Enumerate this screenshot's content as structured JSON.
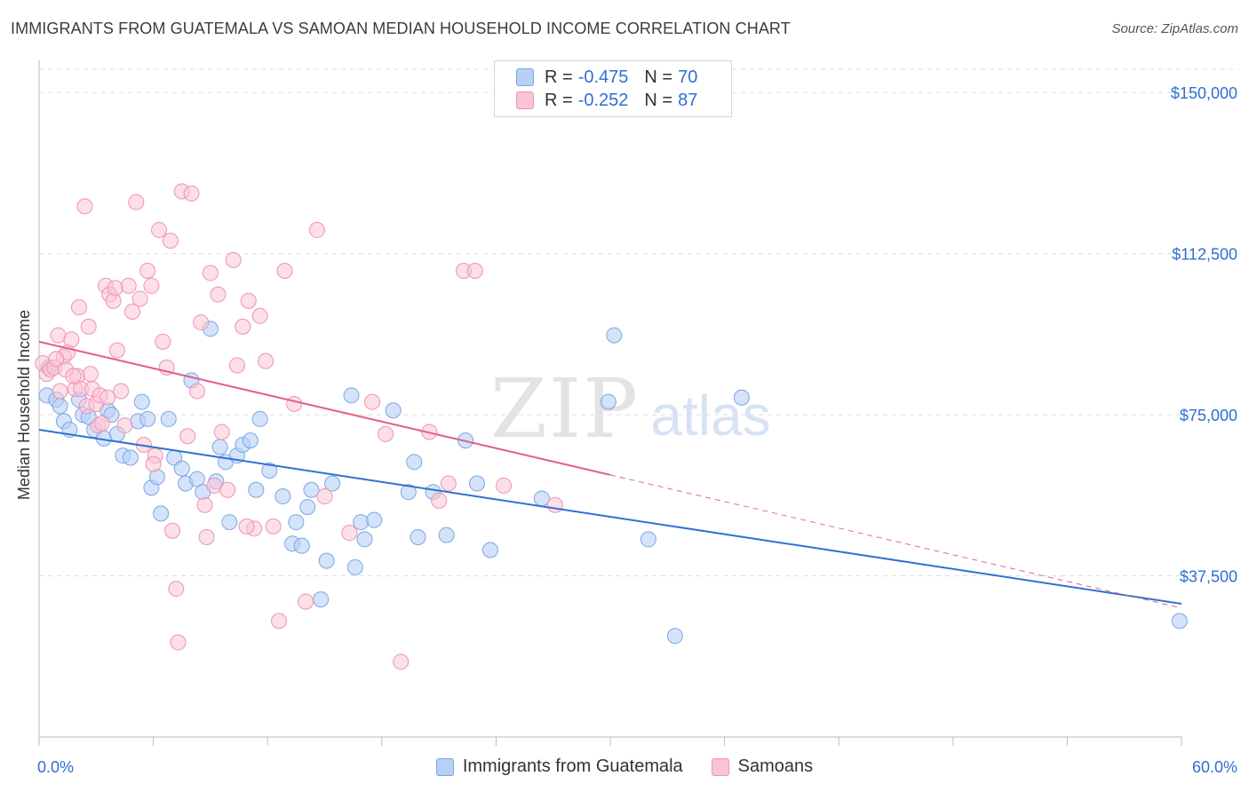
{
  "header": {
    "title": "IMMIGRANTS FROM GUATEMALA VS SAMOAN MEDIAN HOUSEHOLD INCOME CORRELATION CHART",
    "source": "Source: ZipAtlas.com"
  },
  "legend_top": {
    "rows": [
      {
        "r_label": "R =",
        "r_value": "-0.475",
        "n_label": "N =",
        "n_value": "70"
      },
      {
        "r_label": "R =",
        "r_value": "-0.252",
        "n_label": "N =",
        "n_value": "87"
      }
    ]
  },
  "legend_bottom": {
    "items": [
      "Immigrants from Guatemala",
      "Samoans"
    ]
  },
  "colors": {
    "guatemala_fill": "#b8d0f5",
    "guatemala_stroke": "#7aa6e6",
    "guatemala_line": "#2f72d0",
    "samoan_fill": "#f9c4d6",
    "samoan_stroke": "#ee93b2",
    "samoan_line": "#e0628d",
    "axis_label": "#2f6fd0",
    "grid": "#dddddd"
  },
  "watermark": {
    "zip": "ZIP",
    "atlas": "atlas"
  },
  "chart_data": {
    "type": "scatter",
    "xlabel": "",
    "ylabel": "Median Household Income",
    "xlim": [
      0,
      60
    ],
    "ylim": [
      0,
      155000
    ],
    "x_tick_labels": [
      "0.0%",
      "60.0%"
    ],
    "y_ticks": [
      37500,
      75000,
      112500,
      150000
    ],
    "y_tick_labels": [
      "$37,500",
      "$75,000",
      "$112,500",
      "$150,000"
    ],
    "grid": "horizontal dashed",
    "legend_placement": "top-center",
    "series": [
      {
        "name": "Immigrants from Guatemala",
        "trend": {
          "x0": 0,
          "y0": 71500,
          "x1": 60,
          "y1": 31000
        },
        "points": [
          [
            0.4,
            79500
          ],
          [
            0.5,
            86000
          ],
          [
            0.9,
            78500
          ],
          [
            1.1,
            77000
          ],
          [
            1.3,
            73500
          ],
          [
            1.6,
            71500
          ],
          [
            2.1,
            78500
          ],
          [
            2.3,
            75000
          ],
          [
            2.6,
            74500
          ],
          [
            2.9,
            71500
          ],
          [
            3.4,
            69500
          ],
          [
            3.6,
            76000
          ],
          [
            3.8,
            75000
          ],
          [
            4.1,
            70500
          ],
          [
            4.4,
            65500
          ],
          [
            4.8,
            65000
          ],
          [
            5.2,
            73500
          ],
          [
            5.4,
            78000
          ],
          [
            5.7,
            74000
          ],
          [
            5.9,
            58000
          ],
          [
            6.2,
            60500
          ],
          [
            6.4,
            52000
          ],
          [
            6.8,
            74000
          ],
          [
            7.1,
            65000
          ],
          [
            7.5,
            62500
          ],
          [
            7.7,
            59000
          ],
          [
            8.0,
            83000
          ],
          [
            8.3,
            60000
          ],
          [
            8.6,
            57000
          ],
          [
            9.0,
            95000
          ],
          [
            9.3,
            59500
          ],
          [
            9.5,
            67500
          ],
          [
            9.8,
            64000
          ],
          [
            10.0,
            50000
          ],
          [
            10.4,
            65500
          ],
          [
            10.7,
            68000
          ],
          [
            11.1,
            69000
          ],
          [
            11.4,
            57500
          ],
          [
            11.6,
            74000
          ],
          [
            12.1,
            62000
          ],
          [
            12.8,
            56000
          ],
          [
            13.3,
            45000
          ],
          [
            13.5,
            50000
          ],
          [
            13.8,
            44500
          ],
          [
            14.1,
            53500
          ],
          [
            14.3,
            57500
          ],
          [
            14.8,
            32000
          ],
          [
            15.1,
            41000
          ],
          [
            15.4,
            59000
          ],
          [
            16.4,
            79500
          ],
          [
            16.6,
            39500
          ],
          [
            16.9,
            50000
          ],
          [
            17.1,
            46000
          ],
          [
            17.6,
            50500
          ],
          [
            18.6,
            76000
          ],
          [
            19.4,
            57000
          ],
          [
            19.7,
            64000
          ],
          [
            19.9,
            46500
          ],
          [
            20.7,
            57000
          ],
          [
            21.4,
            47000
          ],
          [
            22.4,
            69000
          ],
          [
            23.0,
            59000
          ],
          [
            23.7,
            43500
          ],
          [
            26.4,
            55500
          ],
          [
            29.9,
            78000
          ],
          [
            30.2,
            93500
          ],
          [
            32.0,
            46000
          ],
          [
            33.4,
            23500
          ],
          [
            36.9,
            79000
          ],
          [
            59.9,
            27000
          ]
        ]
      },
      {
        "name": "Samoans",
        "trend": {
          "x0": 0,
          "y0": 92000,
          "x1": 30,
          "y1": 61000
        },
        "trend_dashed": {
          "x0": 30,
          "y0": 61000,
          "x1": 60,
          "y1": 30000
        },
        "points": [
          [
            0.2,
            87000
          ],
          [
            0.4,
            84500
          ],
          [
            0.6,
            85500
          ],
          [
            0.8,
            86000
          ],
          [
            1.0,
            93500
          ],
          [
            1.1,
            80500
          ],
          [
            1.3,
            88500
          ],
          [
            1.5,
            89500
          ],
          [
            1.7,
            92500
          ],
          [
            1.9,
            81000
          ],
          [
            2.0,
            84000
          ],
          [
            2.1,
            100000
          ],
          [
            2.2,
            81000
          ],
          [
            2.4,
            123500
          ],
          [
            2.5,
            77000
          ],
          [
            2.6,
            95500
          ],
          [
            2.8,
            81000
          ],
          [
            3.0,
            77500
          ],
          [
            3.1,
            72500
          ],
          [
            3.3,
            73000
          ],
          [
            3.5,
            105000
          ],
          [
            3.7,
            103000
          ],
          [
            3.9,
            101500
          ],
          [
            4.1,
            90000
          ],
          [
            4.3,
            80500
          ],
          [
            4.5,
            72500
          ],
          [
            4.7,
            105000
          ],
          [
            4.9,
            99000
          ],
          [
            5.1,
            124500
          ],
          [
            5.3,
            102000
          ],
          [
            5.5,
            68000
          ],
          [
            5.7,
            108500
          ],
          [
            5.9,
            105000
          ],
          [
            6.1,
            65500
          ],
          [
            6.3,
            118000
          ],
          [
            6.5,
            92000
          ],
          [
            6.7,
            86000
          ],
          [
            6.9,
            115500
          ],
          [
            7.2,
            34500
          ],
          [
            7.5,
            127000
          ],
          [
            7.8,
            70000
          ],
          [
            8.0,
            126500
          ],
          [
            8.3,
            80500
          ],
          [
            8.5,
            96500
          ],
          [
            8.7,
            54000
          ],
          [
            9.0,
            108000
          ],
          [
            9.2,
            58500
          ],
          [
            9.4,
            103000
          ],
          [
            9.6,
            71000
          ],
          [
            9.9,
            57500
          ],
          [
            10.2,
            111000
          ],
          [
            10.4,
            86500
          ],
          [
            10.7,
            95500
          ],
          [
            11.0,
            101500
          ],
          [
            11.3,
            48500
          ],
          [
            11.6,
            98000
          ],
          [
            11.9,
            87500
          ],
          [
            12.3,
            49000
          ],
          [
            12.6,
            27000
          ],
          [
            12.9,
            108500
          ],
          [
            13.4,
            77500
          ],
          [
            14.0,
            31500
          ],
          [
            14.6,
            118000
          ],
          [
            15.0,
            56000
          ],
          [
            16.3,
            47500
          ],
          [
            17.5,
            78000
          ],
          [
            18.2,
            70500
          ],
          [
            19.0,
            17500
          ],
          [
            20.5,
            71000
          ],
          [
            21.0,
            55000
          ],
          [
            21.5,
            59000
          ],
          [
            22.3,
            108500
          ],
          [
            22.9,
            108500
          ],
          [
            24.4,
            58500
          ],
          [
            27.1,
            54000
          ],
          [
            0.9,
            88000
          ],
          [
            1.4,
            85500
          ],
          [
            1.8,
            84000
          ],
          [
            2.7,
            84500
          ],
          [
            3.2,
            79500
          ],
          [
            3.6,
            79000
          ],
          [
            6.0,
            63500
          ],
          [
            7.0,
            48000
          ],
          [
            8.8,
            46500
          ],
          [
            10.9,
            49000
          ],
          [
            4.0,
            104500
          ],
          [
            7.3,
            22000
          ]
        ]
      }
    ]
  }
}
